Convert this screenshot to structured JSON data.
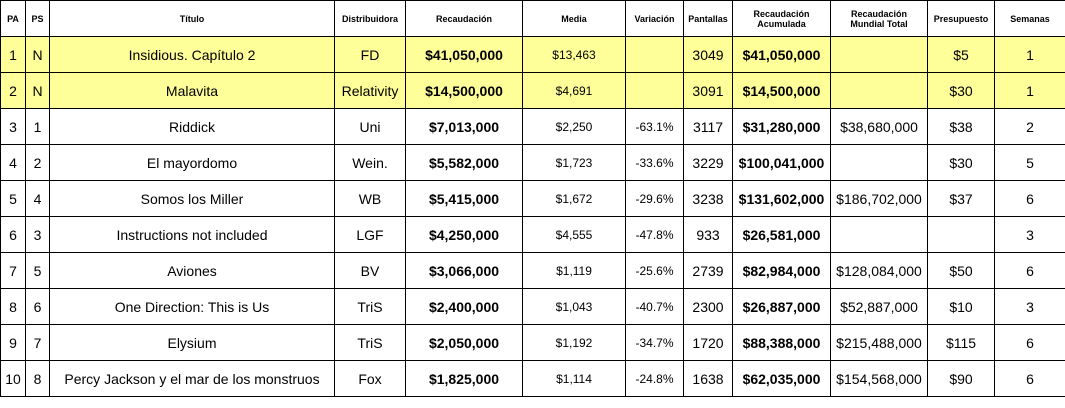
{
  "table": {
    "headers": {
      "pa": "PA",
      "ps": "PS",
      "title": "Título",
      "distributor": "Distribuidora",
      "gross": "Recaudación",
      "average": "Media",
      "change": "Variación",
      "screens": "Pantallas",
      "cumulative": "Recaudación Acumulada",
      "worldwide": "Recaudación Mundial Total",
      "budget": "Presupuesto",
      "weeks": "Semanas"
    },
    "rows": [
      {
        "pa": "1",
        "ps": "N",
        "title": "Insidious. Capítulo 2",
        "distributor": "FD",
        "gross": "$41,050,000",
        "average": "$13,463",
        "change": "",
        "screens": "3049",
        "cumulative": "$41,050,000",
        "worldwide": "",
        "budget": "$5",
        "weeks": "1"
      },
      {
        "pa": "2",
        "ps": "N",
        "title": "Malavita",
        "distributor": "Relativity",
        "gross": "$14,500,000",
        "average": "$4,691",
        "change": "",
        "screens": "3091",
        "cumulative": "$14,500,000",
        "worldwide": "",
        "budget": "$30",
        "weeks": "1"
      },
      {
        "pa": "3",
        "ps": "1",
        "title": "Riddick",
        "distributor": "Uni",
        "gross": "$7,013,000",
        "average": "$2,250",
        "change": "-63.1%",
        "screens": "3117",
        "cumulative": "$31,280,000",
        "worldwide": "$38,680,000",
        "budget": "$38",
        "weeks": "2"
      },
      {
        "pa": "4",
        "ps": "2",
        "title": "El mayordomo",
        "distributor": "Wein.",
        "gross": "$5,582,000",
        "average": "$1,723",
        "change": "-33.6%",
        "screens": "3229",
        "cumulative": "$100,041,000",
        "worldwide": "",
        "budget": "$30",
        "weeks": "5"
      },
      {
        "pa": "5",
        "ps": "4",
        "title": "Somos los Miller",
        "distributor": "WB",
        "gross": "$5,415,000",
        "average": "$1,672",
        "change": "-29.6%",
        "screens": "3238",
        "cumulative": "$131,602,000",
        "worldwide": "$186,702,000",
        "budget": "$37",
        "weeks": "6"
      },
      {
        "pa": "6",
        "ps": "3",
        "title": "Instructions not included",
        "distributor": "LGF",
        "gross": "$4,250,000",
        "average": "$4,555",
        "change": "-47.8%",
        "screens": "933",
        "cumulative": "$26,581,000",
        "worldwide": "",
        "budget": "",
        "weeks": "3"
      },
      {
        "pa": "7",
        "ps": "5",
        "title": "Aviones",
        "distributor": "BV",
        "gross": "$3,066,000",
        "average": "$1,119",
        "change": "-25.6%",
        "screens": "2739",
        "cumulative": "$82,984,000",
        "worldwide": "$128,084,000",
        "budget": "$50",
        "weeks": "6"
      },
      {
        "pa": "8",
        "ps": "6",
        "title": "One Direction: This is Us",
        "distributor": "TriS",
        "gross": "$2,400,000",
        "average": "$1,043",
        "change": "-40.7%",
        "screens": "2300",
        "cumulative": "$26,887,000",
        "worldwide": "$52,887,000",
        "budget": "$10",
        "weeks": "3"
      },
      {
        "pa": "9",
        "ps": "7",
        "title": "Elysium",
        "distributor": "TriS",
        "gross": "$2,050,000",
        "average": "$1,192",
        "change": "-34.7%",
        "screens": "1720",
        "cumulative": "$88,388,000",
        "worldwide": "$215,488,000",
        "budget": "$115",
        "weeks": "6"
      },
      {
        "pa": "10",
        "ps": "8",
        "title": "Percy Jackson y el mar de los monstruos",
        "distributor": "Fox",
        "gross": "$1,825,000",
        "average": "$1,114",
        "change": "-24.8%",
        "screens": "1638",
        "cumulative": "$62,035,000",
        "worldwide": "$154,568,000",
        "budget": "$90",
        "weeks": "6"
      }
    ],
    "highlight_color": "#ffff99"
  }
}
